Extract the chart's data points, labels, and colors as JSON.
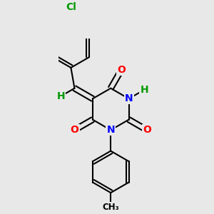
{
  "background_color": "#e8e8e8",
  "bond_color": "#000000",
  "atom_colors": {
    "O": "#ff0000",
    "N": "#0000ff",
    "H": "#009900",
    "Cl": "#009900",
    "C": "#000000"
  },
  "font_size_atoms": 10,
  "figsize": [
    3.0,
    3.0
  ],
  "dpi": 100
}
